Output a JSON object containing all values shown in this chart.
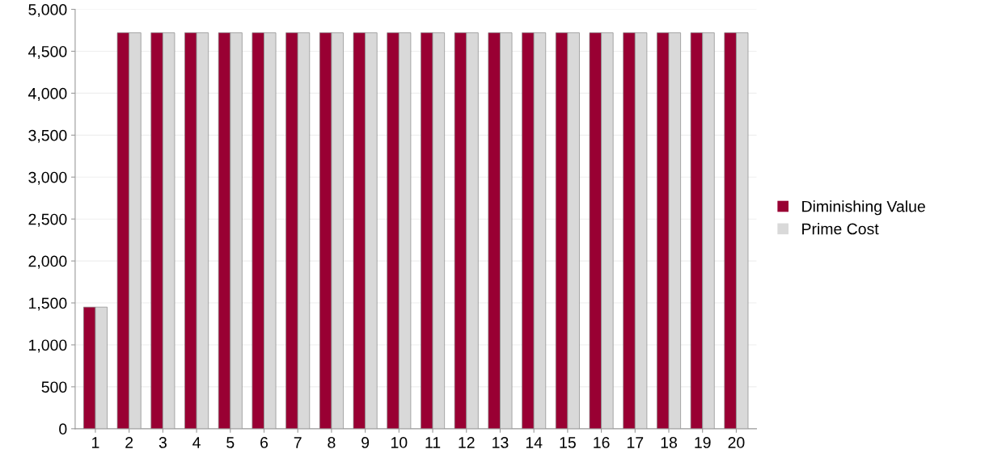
{
  "chart_data": {
    "type": "bar",
    "categories": [
      "1",
      "2",
      "3",
      "4",
      "5",
      "6",
      "7",
      "8",
      "9",
      "10",
      "11",
      "12",
      "13",
      "14",
      "15",
      "16",
      "17",
      "18",
      "19",
      "20"
    ],
    "series": [
      {
        "name": "Diminishing Value",
        "color": "#990033",
        "values": [
          1450,
          4720,
          4720,
          4720,
          4720,
          4720,
          4720,
          4720,
          4720,
          4720,
          4720,
          4720,
          4720,
          4720,
          4720,
          4720,
          4720,
          4720,
          4720,
          4720
        ]
      },
      {
        "name": "Prime Cost",
        "color": "#d9d9d9",
        "values": [
          1450,
          4720,
          4720,
          4720,
          4720,
          4720,
          4720,
          4720,
          4720,
          4720,
          4720,
          4720,
          4720,
          4720,
          4720,
          4720,
          4720,
          4720,
          4720,
          4720
        ]
      }
    ],
    "ylim": [
      0,
      5000
    ],
    "yticks": [
      {
        "value": 0,
        "label": "0"
      },
      {
        "value": 500,
        "label": "500"
      },
      {
        "value": 1000,
        "label": "1,000"
      },
      {
        "value": 1500,
        "label": "1,500"
      },
      {
        "value": 2000,
        "label": "2,000"
      },
      {
        "value": 2500,
        "label": "2,500"
      },
      {
        "value": 3000,
        "label": "3,000"
      },
      {
        "value": 3500,
        "label": "3,500"
      },
      {
        "value": 4000,
        "label": "4,000"
      },
      {
        "value": 4500,
        "label": "4,500"
      },
      {
        "value": 5000,
        "label": "5,000"
      }
    ],
    "grid": "y",
    "legend": "right"
  }
}
